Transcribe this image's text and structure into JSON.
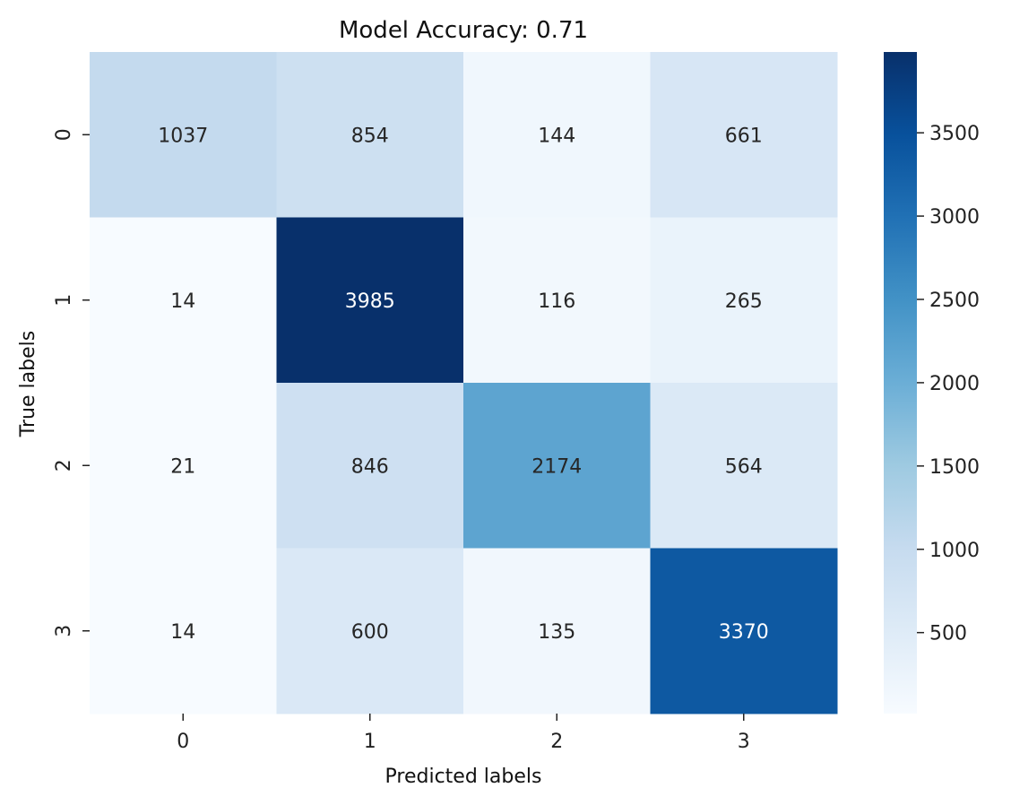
{
  "chart_data": {
    "type": "heatmap",
    "title": "Model Accuracy: 0.71",
    "xlabel": "Predicted labels",
    "ylabel": "True labels",
    "x_categories": [
      "0",
      "1",
      "2",
      "3"
    ],
    "y_categories": [
      "0",
      "1",
      "2",
      "3"
    ],
    "values": [
      [
        1037,
        854,
        144,
        661
      ],
      [
        14,
        3985,
        116,
        265
      ],
      [
        21,
        846,
        2174,
        564
      ],
      [
        14,
        600,
        135,
        3370
      ]
    ],
    "colormap": "Blues",
    "color_range": [
      14,
      3985
    ],
    "colorbar_ticks": [
      500,
      1000,
      1500,
      2000,
      2500,
      3000,
      3500
    ],
    "colorbar_tick_labels": [
      "500",
      "1000",
      "1500",
      "2000",
      "2500",
      "3000",
      "3500"
    ]
  }
}
